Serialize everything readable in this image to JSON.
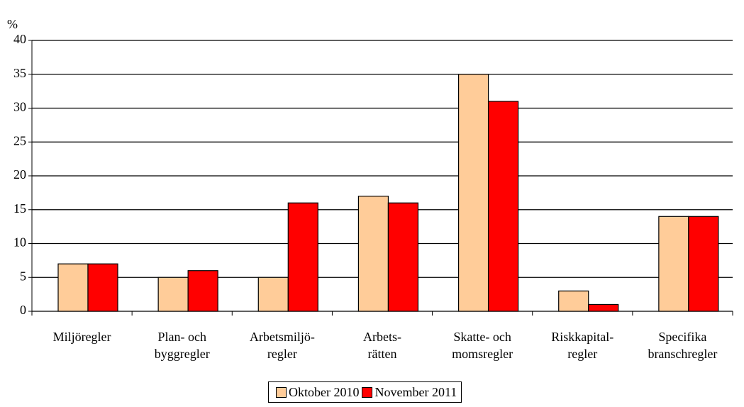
{
  "chart_data": {
    "type": "bar",
    "y_label": "%",
    "categories": [
      "Miljöregler",
      "Plan- och\nbyggregler",
      "Arbetsmiljö-\nregler",
      "Arbets-\nrätten",
      "Skatte- och\nmomsregler",
      "Riskkapital-\nregler",
      "Specifika\nbranschregler"
    ],
    "series": [
      {
        "name": "Oktober 2010",
        "color": "#FFCC99",
        "values": [
          7,
          5,
          5,
          17,
          35,
          3,
          14
        ]
      },
      {
        "name": "November 2011",
        "color": "#FF0000",
        "values": [
          7,
          6,
          16,
          16,
          31,
          1,
          14
        ]
      }
    ],
    "ylim": [
      0,
      40
    ],
    "yticks": [
      0,
      5,
      10,
      15,
      20,
      25,
      30,
      35,
      40
    ],
    "grid": true,
    "legend": "bottom"
  }
}
